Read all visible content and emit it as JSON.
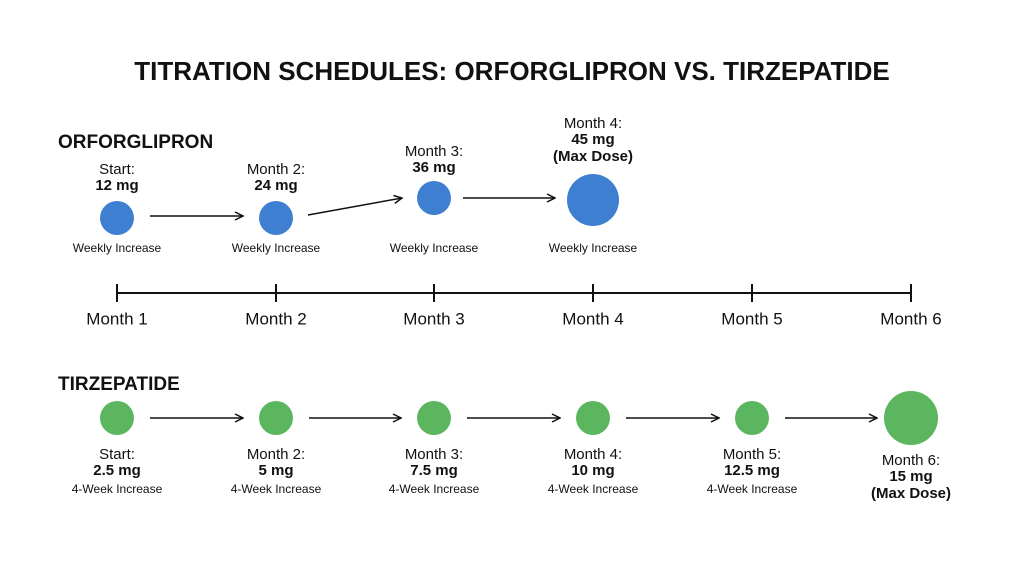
{
  "title": "TITRATION SCHEDULES: ORFORGLIPRON VS. TIRZEPATIDE",
  "schedules": [
    {
      "name": "ORFORGLIPRON",
      "steps": [
        {
          "label": "Start:",
          "dose": "12 mg",
          "note": "Weekly Increase"
        },
        {
          "label": "Month 2:",
          "dose": "24 mg",
          "note": "Weekly Increase"
        },
        {
          "label": "Month 3:",
          "dose": "36 mg",
          "note": "Weekly Increase"
        },
        {
          "label": "Month 4:",
          "dose": "45 mg",
          "extra": "(Max Dose)",
          "note": "Weekly Increase"
        }
      ]
    },
    {
      "name": "TIRZEPATIDE",
      "steps": [
        {
          "label": "Start:",
          "dose": "2.5 mg",
          "note": "4-Week Increase"
        },
        {
          "label": "Month 2:",
          "dose": "5 mg",
          "note": "4-Week Increase"
        },
        {
          "label": "Month 3:",
          "dose": "7.5 mg",
          "note": "4-Week Increase"
        },
        {
          "label": "Month 4:",
          "dose": "10 mg",
          "note": "4-Week Increase"
        },
        {
          "label": "Month 5:",
          "dose": "12.5 mg",
          "note": "4-Week Increase"
        },
        {
          "label": "Month 6:",
          "dose": "15 mg",
          "extra": "(Max Dose)"
        }
      ]
    }
  ],
  "timeline": [
    "Month 1",
    "Month 2",
    "Month 3",
    "Month 4",
    "Month 5",
    "Month 6"
  ]
}
